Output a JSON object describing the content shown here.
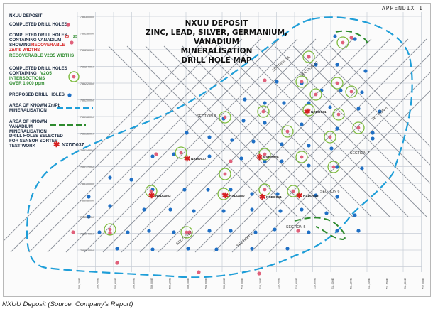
{
  "appendix": "APPENDIX 1",
  "title_lines": [
    "NXUU DEPOSIT",
    "ZINC, LEAD, SILVER, GERMANIUM, VANADIUM",
    "MINERALISATION",
    "DRILL HOLE MAP"
  ],
  "legend": {
    "deposit": "NXUU DEPOSIT",
    "completed": "COMPLETED DRILL HOLES",
    "vanadium_line1": "COMPLETED DRILL HOLES",
    "vanadium_line2": "CONTAINING VANADIUM",
    "vanadium_num_a": "23",
    "vanadium_num_b": "25",
    "showing": "SHOWING",
    "recoverable": "RECOVERABLE",
    "znpb_widths": "Zn/Pb WIDTHS",
    "v2o5_widths": "RECOVERABLE V2O5 WIDTHS",
    "v2o5_line1": "COMPLETED DRILL HOLES",
    "v2o5_line2a": "CONTAINING",
    "v2o5_line2b": "V2O5",
    "v2o5_line3": "INTERSECTIONS",
    "v2o5_line4": "OVER 1,000 ppm",
    "proposed": "PROPOSED DRILL HOLES",
    "znpb_area_line1": "AREA OF KNOWN Zn/Pb",
    "znpb_area_line2": "MINERALISATION",
    "v_area_line1": "AREA OF KNOWN",
    "v_area_line2": "VANADIUM",
    "v_area_line3": "MINERALISATION",
    "sorter_line1": "DRILL HOLES SELECTED",
    "sorter_line2": "FOR SENSOR SORTER",
    "sorter_line3": "TEST WORK",
    "sorter_example": "NXDD037"
  },
  "map": {
    "colors": {
      "completed": "#e0607a",
      "proposed": "#1f6fc4",
      "znpb_boundary": "#1e9ed8",
      "vanadium_boundary": "#2e8b2e",
      "vanadium_ring": "#7dbb3e",
      "sorter": "#d62020"
    },
    "sections": [
      "SECTION 1A",
      "SECTION 10",
      "SECTION 9",
      "SECTION 8",
      "SECTION 7",
      "SECTION 6",
      "SECTION 5",
      "SECTION 4",
      "SECTION 3"
    ],
    "hole_labels": [
      "NXDD037",
      "NXDD053",
      "NXDD050",
      "NXDD044",
      "NXDD046",
      "NXDD031",
      "NXDD029"
    ],
    "northing_labels": [
      "7,853,000N",
      "7,852,800N",
      "7,852,600N",
      "7,852,400N",
      "7,852,200N",
      "7,852,000N",
      "7,851,800N",
      "7,851,600N",
      "7,851,400N",
      "7,851,200N",
      "7,851,000N",
      "7,850,800N",
      "7,850,600N",
      "7,850,400N",
      "7,850,200N"
    ],
    "easting_labels": [
      "508,200E",
      "508,400E",
      "508,600E",
      "508,800E",
      "509,000E",
      "509,200E",
      "509,400E",
      "509,600E",
      "509,800E",
      "510,000E",
      "510,200E",
      "510,400E",
      "510,600E",
      "510,800E",
      "511,000E",
      "511,200E",
      "511,400E",
      "511,600E",
      "511,800E",
      "512,000E"
    ]
  },
  "caption": "NXUU Deposit (Source: Company's Report)"
}
